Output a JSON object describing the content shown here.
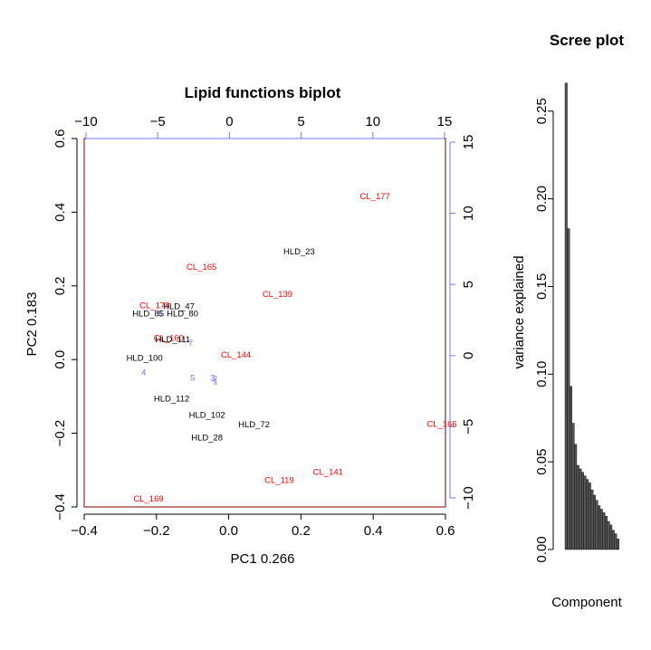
{
  "colors": {
    "cl": "#ff0000",
    "hld": "#000000",
    "loading": "#7777ff",
    "frame": "#800000",
    "secondary_axis": "#7777ff",
    "bar_fill": "#555555"
  },
  "chart_data": [
    {
      "type": "scatter",
      "title": "Lipid functions biplot",
      "xlabel": "PC1 0.266",
      "ylabel": "PC2 0.183",
      "xlim": [
        -0.4,
        0.6
      ],
      "ylim": [
        -0.4,
        0.6
      ],
      "x_ticks": [
        "-0.4",
        "-0.2",
        "0.0",
        "0.2",
        "0.4",
        "0.6"
      ],
      "y_ticks": [
        "-0.4",
        "-0.2",
        "0.0",
        "0.2",
        "0.4",
        "0.6"
      ],
      "secondary_xlim": [
        -10,
        15
      ],
      "secondary_x_ticks": [
        "-10",
        "-5",
        "0",
        "5",
        "10",
        "15"
      ],
      "secondary_y_ticks": [
        "-10",
        "-5",
        "0",
        "5",
        "10",
        "15"
      ],
      "points": [
        {
          "label": "CL_177",
          "x": 0.405,
          "y": 0.443,
          "group": "CL"
        },
        {
          "label": "HLD_23",
          "x": 0.195,
          "y": 0.293,
          "group": "HLD"
        },
        {
          "label": "CL_165",
          "x": -0.075,
          "y": 0.251,
          "group": "CL"
        },
        {
          "label": "CL_139",
          "x": 0.135,
          "y": 0.178,
          "group": "CL"
        },
        {
          "label": "CL_178",
          "x": -0.205,
          "y": 0.147,
          "group": "CL"
        },
        {
          "label": "HLD_47",
          "x": -0.138,
          "y": 0.144,
          "group": "HLD"
        },
        {
          "label": "HLD_85",
          "x": -0.223,
          "y": 0.125,
          "group": "HLD"
        },
        {
          "label": "HLD_80",
          "x": -0.128,
          "y": 0.125,
          "group": "HLD"
        },
        {
          "label": "CL_160",
          "x": -0.166,
          "y": 0.058,
          "group": "CL"
        },
        {
          "label": "HLD_111",
          "x": -0.155,
          "y": 0.054,
          "group": "HLD"
        },
        {
          "label": "CL_144",
          "x": 0.02,
          "y": 0.013,
          "group": "CL"
        },
        {
          "label": "HLD_100",
          "x": -0.233,
          "y": 0.004,
          "group": "HLD"
        },
        {
          "label": "HLD_112",
          "x": -0.158,
          "y": -0.107,
          "group": "HLD"
        },
        {
          "label": "HLD_102",
          "x": -0.06,
          "y": -0.15,
          "group": "HLD"
        },
        {
          "label": "HLD_72",
          "x": 0.07,
          "y": -0.176,
          "group": "HLD"
        },
        {
          "label": "HLD_28",
          "x": -0.06,
          "y": -0.212,
          "group": "HLD"
        },
        {
          "label": "CL_166",
          "x": 0.59,
          "y": -0.175,
          "group": "CL"
        },
        {
          "label": "CL_141",
          "x": 0.275,
          "y": -0.305,
          "group": "CL"
        },
        {
          "label": "CL_119",
          "x": 0.14,
          "y": -0.327,
          "group": "CL"
        },
        {
          "label": "CL_169",
          "x": -0.222,
          "y": -0.378,
          "group": "CL"
        }
      ],
      "loadings": [
        {
          "label": "4",
          "x": -0.235,
          "y": -0.035
        },
        {
          "label": "5",
          "x": -0.1,
          "y": -0.05
        },
        {
          "label": "3",
          "x": -0.045,
          "y": -0.05
        },
        {
          "label": "2",
          "x": -0.038,
          "y": -0.052
        },
        {
          "label": "1",
          "x": -0.037,
          "y": -0.06
        },
        {
          "label": "6",
          "x": -0.19,
          "y": 0.125
        },
        {
          "label": "7",
          "x": -0.105,
          "y": 0.045
        }
      ]
    },
    {
      "type": "bar",
      "title": "Scree plot",
      "xlabel": "Component",
      "ylabel": "variance explained",
      "ylim": [
        0,
        0.27
      ],
      "y_ticks": [
        "0.00",
        "0.05",
        "0.10",
        "0.15",
        "0.20",
        "0.25"
      ],
      "values": [
        0.266,
        0.183,
        0.093,
        0.072,
        0.06,
        0.048,
        0.046,
        0.044,
        0.042,
        0.04,
        0.038,
        0.034,
        0.031,
        0.028,
        0.025,
        0.023,
        0.021,
        0.019,
        0.016,
        0.014,
        0.011,
        0.009,
        0.006
      ]
    }
  ]
}
